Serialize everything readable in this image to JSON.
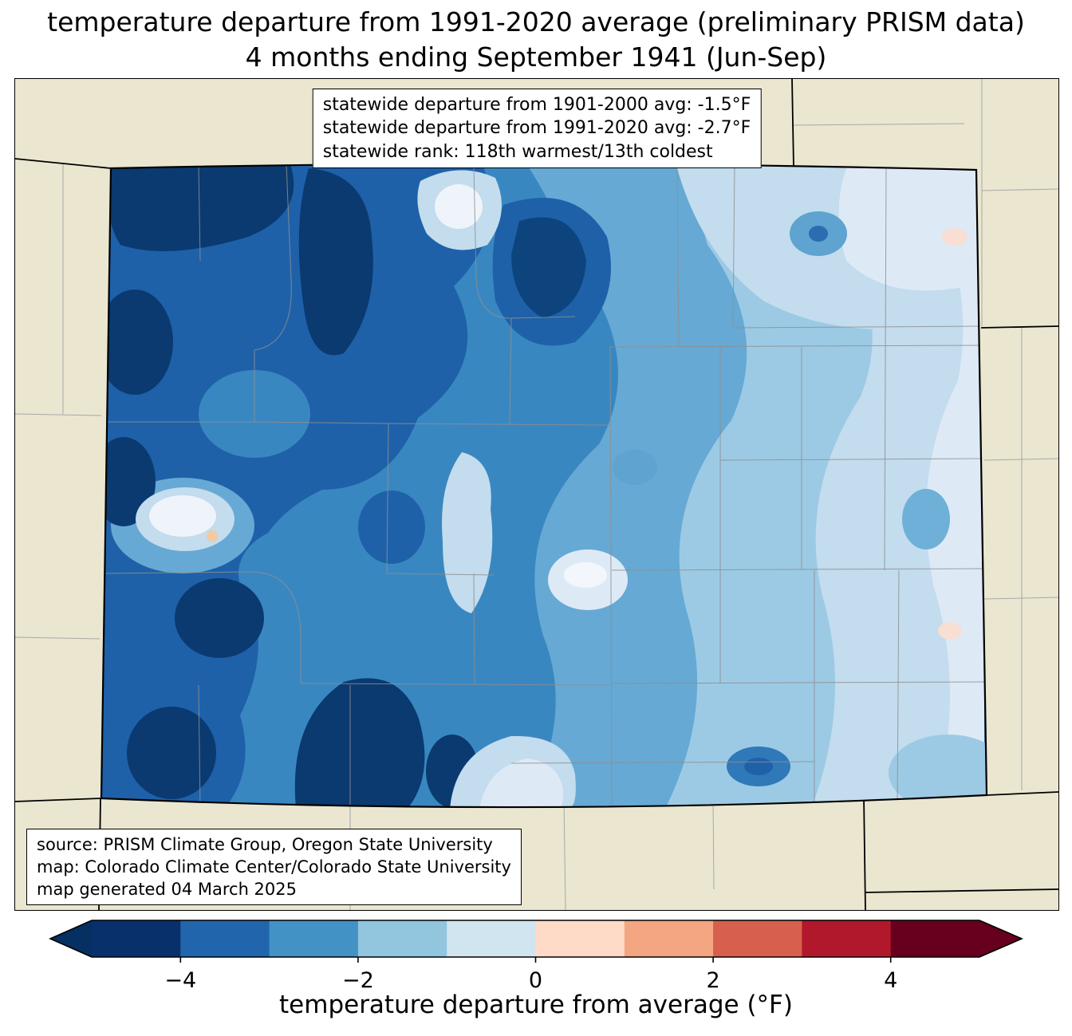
{
  "title": {
    "line1": "temperature departure from 1991-2020 average (preliminary PRISM data)",
    "line2": "4 months ending September 1941 (Jun-Sep)"
  },
  "map": {
    "region": "Colorado",
    "stats_box": {
      "lines": [
        "statewide departure from 1901-2000 avg: -1.5°F",
        "statewide departure from 1991-2020 avg: -2.7°F",
        "statewide rank: 118th warmest/13th coldest"
      ]
    },
    "credits_box": {
      "lines": [
        "source: PRISM Climate Group, Oregon State University",
        "map: Colorado Climate Center/Colorado State University",
        "map generated 04 March 2025"
      ]
    },
    "colors": {
      "land_background": "#eae6d0",
      "state_border": "#000000",
      "county_lines": "#8f8f8f"
    }
  },
  "colorbar": {
    "label": "temperature departure from average (°F)",
    "range": [
      -5,
      5
    ],
    "tick_values": [
      -4,
      -2,
      0,
      2,
      4
    ],
    "tick_labels": [
      "−4",
      "−2",
      "0",
      "2",
      "4"
    ],
    "segment_colors": [
      "#08306b",
      "#2166ac",
      "#4292c6",
      "#92c5de",
      "#d1e5f0",
      "#fddbc7",
      "#f4a582",
      "#d6604d",
      "#b2182b",
      "#67001f"
    ],
    "under_color": "#053061",
    "over_color": "#67001f"
  }
}
